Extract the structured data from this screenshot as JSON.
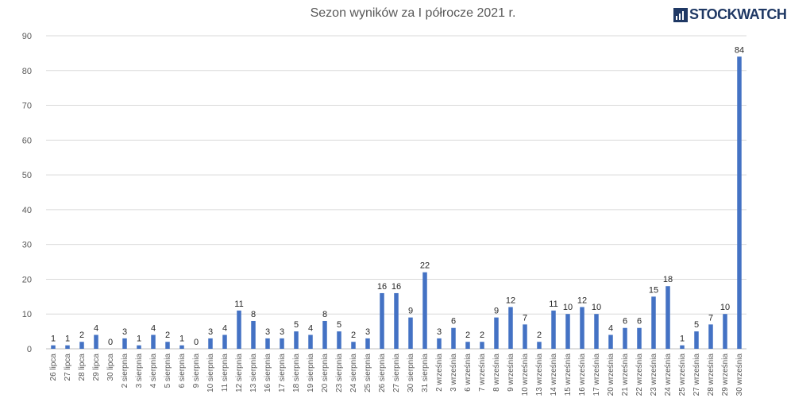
{
  "logo_text": "STOCKWATCH",
  "chart_data": {
    "type": "bar",
    "title": "Sezon wyników za I półrocze 2021 r.",
    "xlabel": "",
    "ylabel": "",
    "ylim": [
      0,
      90
    ],
    "yticks": [
      0,
      10,
      20,
      30,
      40,
      50,
      60,
      70,
      80,
      90
    ],
    "grid": true,
    "bar_color": "#4472c4",
    "categories": [
      "26 lipca",
      "27 lipca",
      "28 lipca",
      "29 lipca",
      "30 lipca",
      "2 sierpnia",
      "3 sierpnia",
      "4 sierpnia",
      "5 sierpnia",
      "6 sierpnia",
      "9 sierpnia",
      "10 sierpnia",
      "11 sierpnia",
      "12 sierpnia",
      "13 sierpnia",
      "16 sierpnia",
      "17 sierpnia",
      "18 sierpnia",
      "19 sierpnia",
      "20 sierpnia",
      "23 sierpnia",
      "24 sierpnia",
      "25 sierpnia",
      "26 sierpnia",
      "27 sierpnia",
      "30 sierpnia",
      "31 sierpnia",
      "2 września",
      "3 września",
      "6 września",
      "7 września",
      "8 września",
      "9 września",
      "10 września",
      "13 września",
      "14 września",
      "15 września",
      "16 września",
      "17 września",
      "20 września",
      "21 września",
      "22 września",
      "23 września",
      "24 września",
      "25 września",
      "27 września",
      "28 września",
      "29 września",
      "30 września"
    ],
    "values": [
      1,
      1,
      2,
      4,
      0,
      3,
      1,
      4,
      2,
      1,
      0,
      3,
      4,
      11,
      8,
      3,
      3,
      5,
      4,
      8,
      5,
      2,
      3,
      16,
      16,
      9,
      22,
      3,
      6,
      2,
      2,
      9,
      12,
      7,
      2,
      11,
      10,
      12,
      10,
      4,
      6,
      6,
      15,
      18,
      1,
      5,
      7,
      10,
      84
    ]
  }
}
